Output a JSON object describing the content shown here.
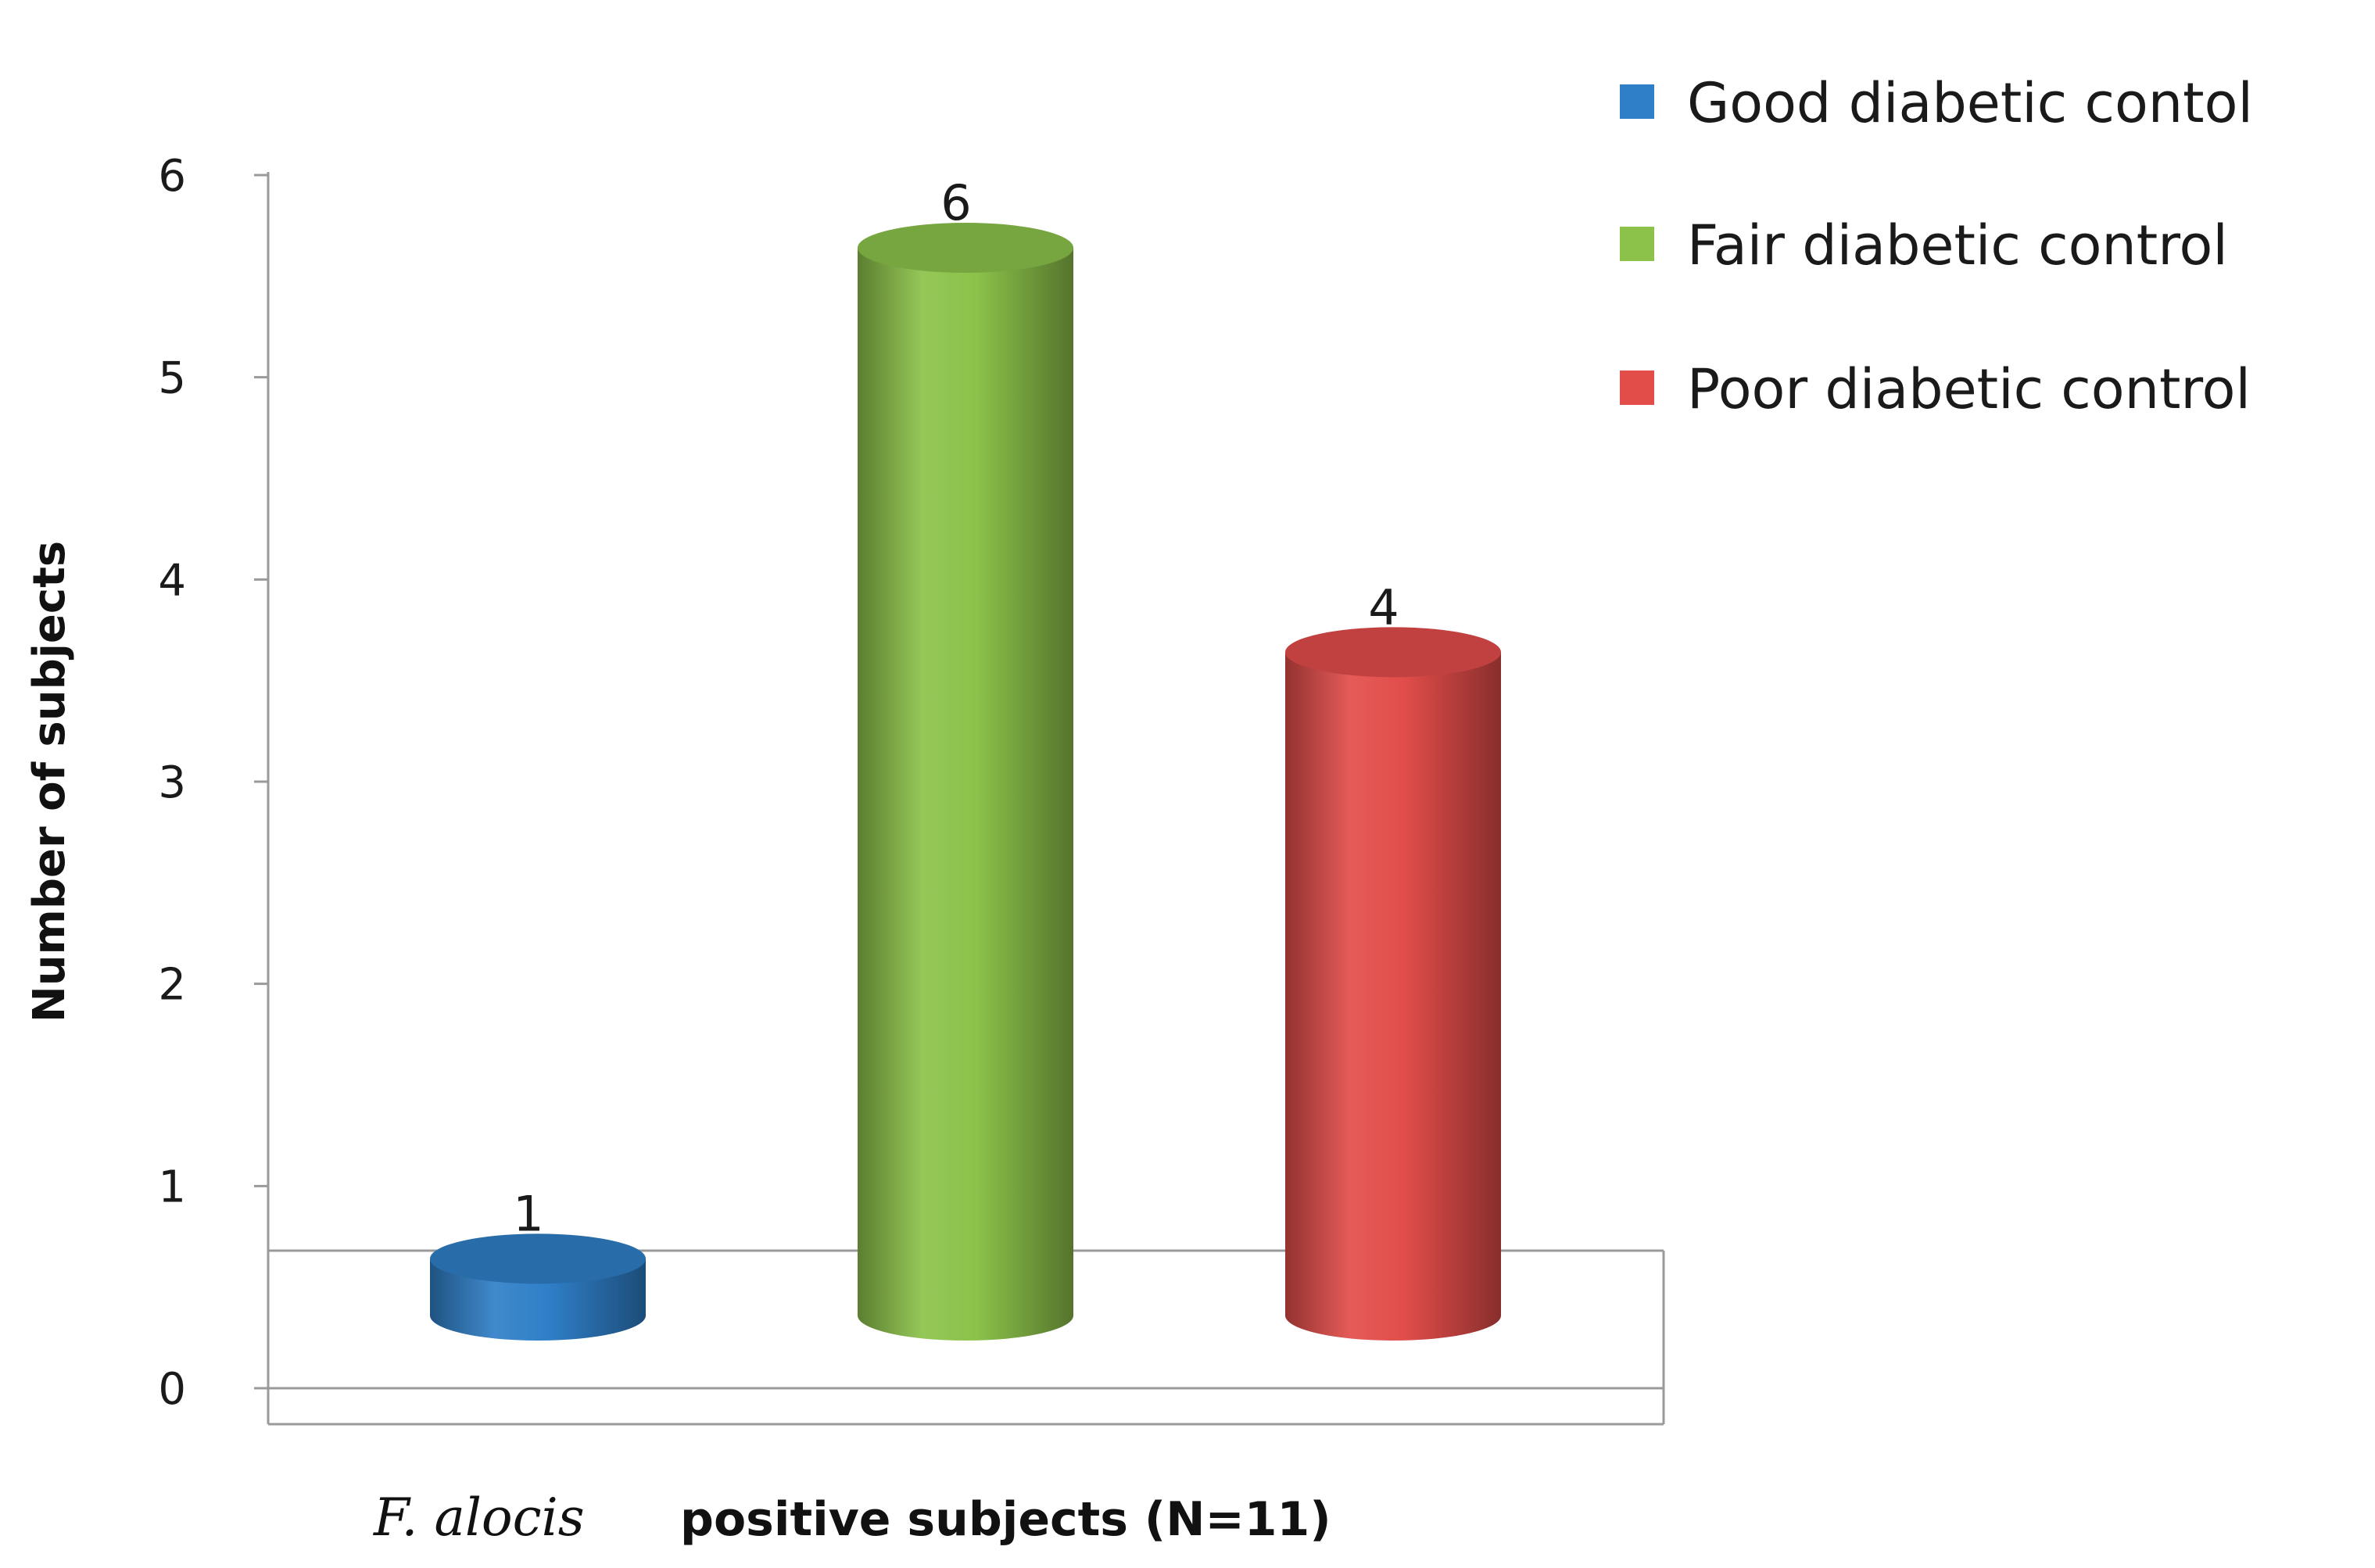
{
  "chart_data": {
    "type": "bar",
    "categories": [
      "Good diabetic contol",
      "Fair diabetic control",
      "Poor diabetic control"
    ],
    "values": [
      1,
      6,
      4
    ],
    "colors": [
      "#2f7fc8",
      "#8cc24a",
      "#e24d4a"
    ],
    "data_labels": [
      "1",
      "6",
      "4"
    ],
    "ylabel": "Number of subjects",
    "xlabel_italic": "F. alocis",
    "xlabel_rest": "positive subjects (N=11)",
    "ylim": [
      0,
      6
    ],
    "yticks": [
      "0",
      "1",
      "2",
      "3",
      "4",
      "5",
      "6"
    ],
    "grid": false,
    "legend": {
      "placement": "top-right",
      "entries": [
        "Good diabetic contol",
        "Fair diabetic control",
        "Poor diabetic control"
      ]
    }
  }
}
